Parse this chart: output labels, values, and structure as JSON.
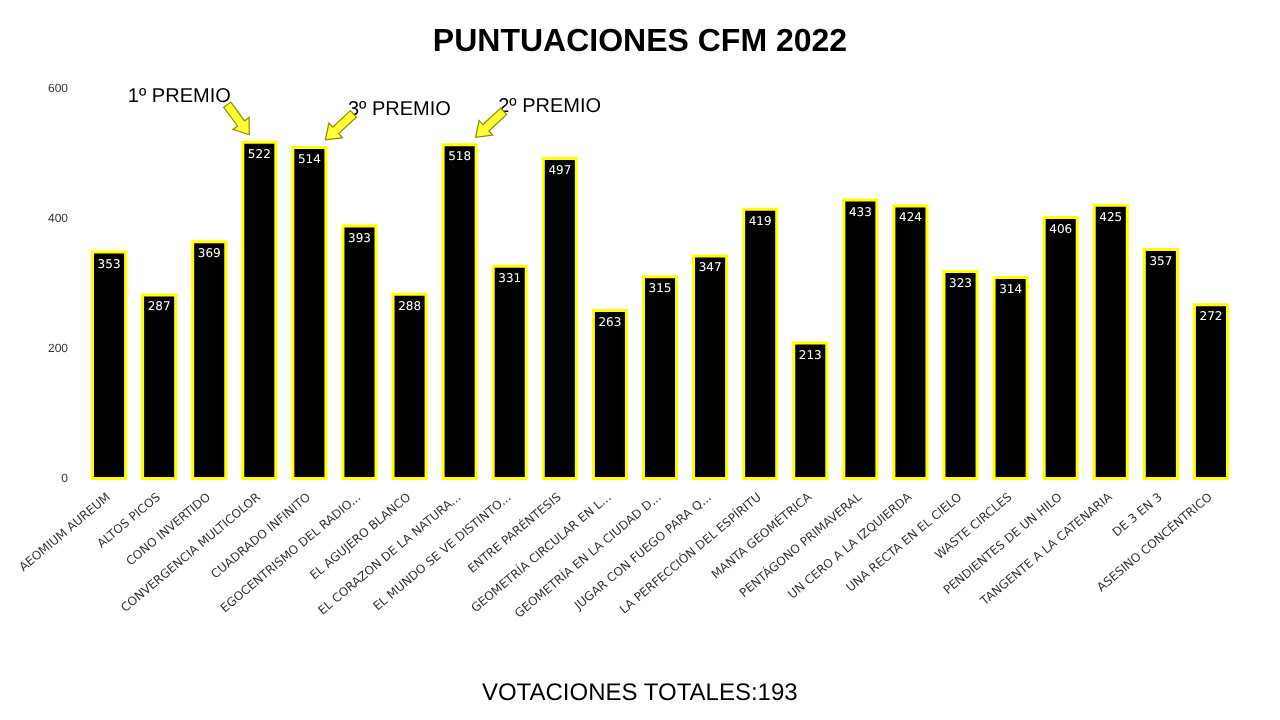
{
  "chart_data": {
    "type": "bar",
    "title": "PUNTUACIONES CFM 2022",
    "categories": [
      "AEOMIUM AUREUM",
      "ALTOS PICOS",
      "CONO INVERTIDO",
      "CONVERGENCIA MULTICOLOR",
      "CUADRADO INFINITO",
      "EGOCENTRISMO DEL RADIO...",
      "EL AGUJERO BLANCO",
      "EL CORAZON DE LA NATURA...",
      "EL MUNDO SE VE DISTINTO...",
      "ENTRE PARÉNTESIS",
      "GEOMETRÍA CIRCULAR EN L...",
      "GEOMETRÍA EN LA CIUDAD D...",
      "JUGAR CON FUEGO PARA Q...",
      "LA PERFECCIÓN DEL ESPÍRITU",
      "MANTA GEOMÉTRICA",
      "PENTÁGONO PRIMAVERAL",
      "UN CERO A LA IZQUIERDA",
      "UNA RECTA EN EL CIELO",
      "WASTE CIRCLES",
      "PENDIENTES DE UN HILO",
      "TANGENTE A LA CATENARIA",
      "DE 3 EN 3",
      "ASESINO CONCÉNTRICO"
    ],
    "values": [
      353,
      287,
      369,
      522,
      514,
      393,
      288,
      518,
      331,
      497,
      263,
      315,
      347,
      419,
      213,
      433,
      424,
      323,
      314,
      406,
      425,
      357,
      272
    ],
    "color": "#000000",
    "ylim": [
      0,
      600
    ],
    "yticks": [
      0,
      200,
      400,
      600
    ],
    "grid": false,
    "data_labels": true,
    "annotations": [
      {
        "text": "1º PREMIO",
        "x": "CONVERGENCIA MULTICOLOR",
        "y": 522
      },
      {
        "text": "3º PREMIO",
        "x": "CUADRADO INFINITO",
        "y": 514
      },
      {
        "text": "2º PREMIO",
        "x": "EL CORAZON DE LA NATURA...",
        "y": 518
      },
      "VOTACIONES TOTALES:193"
    ]
  }
}
